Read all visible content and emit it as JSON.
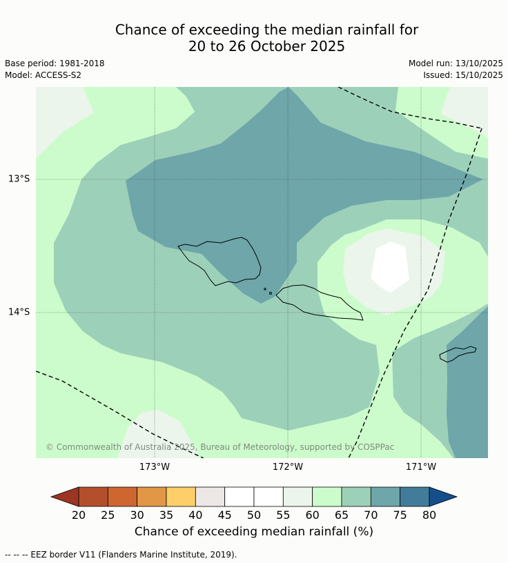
{
  "title": {
    "line1": "Chance of exceeding the median rainfall for",
    "line2": "20 to 26 October 2025"
  },
  "meta": {
    "base_period": "Base period: 1981-2018",
    "model": "Model: ACCESS-S2",
    "model_run": "Model run: 13/10/2025",
    "issued": "Issued: 15/10/2025"
  },
  "map": {
    "copyright": "© Commonwealth of Australia 2025, Bureau of Meteorology, supported by COSPPac",
    "lon_labels": [
      "173°W",
      "172°W",
      "171°W"
    ],
    "lat_labels": [
      "13°S",
      "14°S"
    ]
  },
  "colorbar": {
    "title": "Chance of exceeding median rainfall (%)",
    "ticks": [
      "20",
      "25",
      "30",
      "35",
      "40",
      "45",
      "50",
      "55",
      "60",
      "65",
      "70",
      "75",
      "80"
    ],
    "colors": [
      "#9d3523",
      "#b44f2b",
      "#cf6630",
      "#e29747",
      "#fece6b",
      "#ede8e5",
      "#ffffff",
      "#ffffff",
      "#ebf5eb",
      "#ccfccb",
      "#9dd0b9",
      "#6ea6a9",
      "#437b9b",
      "#144f8b"
    ],
    "under_color": "#9d3523",
    "over_color": "#144f8b"
  },
  "legend_color_classes": {
    "c55_60": "#ebf5eb",
    "c60_65": "#ccfccb",
    "c65_70": "#9dd0b9",
    "c70_75": "#6ea6a9",
    "c50_55": "#ffffff"
  },
  "footnote": "--  --  -- EEZ border V11 (Flanders Marine Institute, 2019)."
}
